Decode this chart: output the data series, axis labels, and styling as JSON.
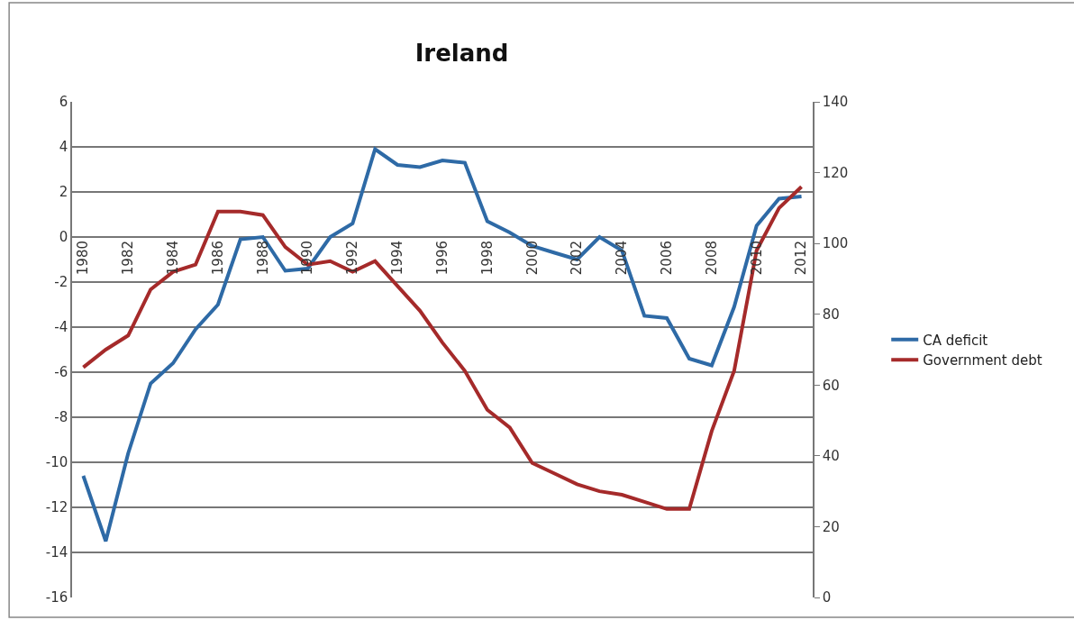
{
  "chart_data": {
    "type": "line",
    "title": "Ireland",
    "x": [
      1980,
      1981,
      1982,
      1983,
      1984,
      1985,
      1986,
      1987,
      1988,
      1989,
      1990,
      1991,
      1992,
      1993,
      1994,
      1995,
      1996,
      1997,
      1998,
      1999,
      2000,
      2001,
      2002,
      2003,
      2004,
      2005,
      2006,
      2007,
      2008,
      2009,
      2010,
      2011,
      2012
    ],
    "series": [
      {
        "name": "CA deficit",
        "color": "#2e6aa6",
        "values": [
          -10.6,
          -13.5,
          -9.6,
          -6.5,
          -5.6,
          -4.1,
          -3.0,
          -0.1,
          0.0,
          -1.5,
          -1.4,
          0.0,
          0.6,
          3.9,
          3.2,
          3.1,
          3.4,
          3.3,
          0.7,
          0.2,
          -0.4,
          -0.7,
          -1.0,
          0.0,
          -0.6,
          -3.5,
          -3.6,
          -5.4,
          -5.7,
          -3.1,
          0.5,
          1.7,
          1.8
        ]
      },
      {
        "name": "Government debt",
        "color": "#a52a2a",
        "axis": "y2",
        "values": [
          65,
          70,
          74,
          87,
          92,
          94,
          109,
          109,
          108,
          99,
          94,
          95,
          92,
          95,
          88,
          81,
          72,
          64,
          53,
          48,
          38,
          35,
          32,
          30,
          29,
          27,
          25,
          25,
          47,
          64,
          98,
          110,
          116
        ]
      }
    ],
    "xlim": [
      1979.5,
      2012.5
    ],
    "xticks": [
      1980,
      1982,
      1984,
      1986,
      1988,
      1990,
      1992,
      1994,
      1996,
      1998,
      2000,
      2002,
      2004,
      2006,
      2008,
      2010,
      2012
    ],
    "ylim": [
      -16,
      6
    ],
    "yticks": [
      -16,
      -14,
      -12,
      -10,
      -8,
      -6,
      -4,
      -2,
      0,
      2,
      4,
      6
    ],
    "y2lim": [
      0,
      140
    ],
    "y2ticks": [
      0,
      20,
      40,
      60,
      80,
      100,
      120,
      140
    ],
    "grid": "y",
    "legend": "right",
    "line_style": "solid",
    "marker": "none"
  }
}
